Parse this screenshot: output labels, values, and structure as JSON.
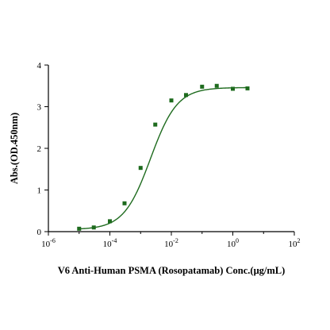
{
  "chart_data": {
    "type": "scatter",
    "title": "",
    "xlabel": "V6 Anti-Human PSMA (Rosopatamab)  Conc.(μg/mL)",
    "ylabel": "Abs.(OD.450nm)",
    "x_scale": "log",
    "xlim": [
      1e-06,
      100
    ],
    "ylim": [
      0,
      4
    ],
    "x_ticks": [
      {
        "base": "10",
        "exp": "-6",
        "value": 1e-06
      },
      {
        "base": "10",
        "exp": "-4",
        "value": 0.0001
      },
      {
        "base": "10",
        "exp": "-2",
        "value": 0.01
      },
      {
        "base": "10",
        "exp": "0",
        "value": 1
      },
      {
        "base": "10",
        "exp": "2",
        "value": 100
      }
    ],
    "y_ticks": [
      "0",
      "1",
      "2",
      "3",
      "4"
    ],
    "y_tick_values": [
      0,
      1,
      2,
      3,
      4
    ],
    "grid": false,
    "legend": "none",
    "series": [
      {
        "name": "",
        "color": "#1e6b1e",
        "x": [
          1e-05,
          3e-05,
          0.0001,
          0.0003,
          0.001,
          0.003,
          0.01,
          0.03,
          0.1,
          0.3,
          1,
          3
        ],
        "y": [
          0.07,
          0.1,
          0.25,
          0.68,
          1.53,
          2.57,
          3.15,
          3.28,
          3.48,
          3.5,
          3.43,
          3.44
        ]
      }
    ],
    "fit_curve": {
      "color": "#1e6b1e",
      "model": "4PL",
      "bottom": 0.05,
      "top": 3.46,
      "ec50": 0.0021,
      "hill": 1.0
    }
  }
}
